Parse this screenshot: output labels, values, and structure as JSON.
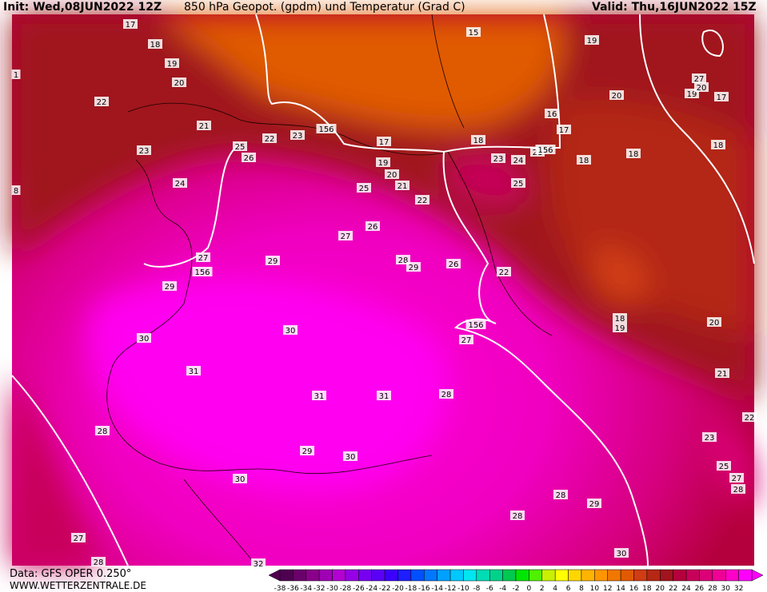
{
  "header": {
    "init": "Init: Wed,08JUN2022 12Z",
    "title": "850 hPa Geopot. (gpdm) und Temperatur (Grad C)",
    "valid": "Valid: Thu,16JUN2022 15Z"
  },
  "footer": {
    "data": "Data: GFS OPER 0.250°",
    "site": "WWW.WETTERZENTRALE.DE"
  },
  "colorbar": {
    "values": [
      -38,
      -36,
      -34,
      -32,
      -30,
      -28,
      -26,
      -24,
      -22,
      -20,
      -18,
      -16,
      -14,
      -12,
      -10,
      -8,
      -6,
      -4,
      -2,
      0,
      2,
      4,
      6,
      8,
      10,
      12,
      14,
      16,
      18,
      20,
      22,
      24,
      26,
      28,
      30,
      32
    ],
    "colors": [
      "#500050",
      "#6a006a",
      "#8a008a",
      "#a000b4",
      "#b400d2",
      "#9600e6",
      "#7800f0",
      "#5a00f5",
      "#3c00ff",
      "#1e1eff",
      "#0050ff",
      "#0078ff",
      "#00a0ff",
      "#00c8ff",
      "#00e6f0",
      "#00dcb4",
      "#00d28c",
      "#00c850",
      "#00e600",
      "#50f000",
      "#c8f000",
      "#ffff00",
      "#ffd700",
      "#ffb400",
      "#ff9600",
      "#f07800",
      "#e05a00",
      "#d03c14",
      "#b42814",
      "#a0141e",
      "#b4003c",
      "#c8005a",
      "#dc0078",
      "#f00096",
      "#ff00c8",
      "#ff00ff"
    ]
  },
  "map": {
    "labels": [
      17,
      18,
      19,
      20,
      22,
      21,
      23,
      24,
      25,
      26,
      22,
      23,
      156,
      17,
      19,
      20,
      21,
      22,
      25,
      18,
      23,
      24,
      21,
      156,
      25,
      16,
      17,
      18,
      18,
      15,
      19,
      20,
      19,
      20,
      17,
      27,
      18,
      27,
      26,
      29,
      28,
      29,
      26,
      22,
      27,
      156,
      29,
      30,
      30,
      156,
      27,
      18,
      19,
      20,
      21,
      22,
      23,
      31,
      31,
      31,
      28,
      28,
      29,
      30,
      30,
      27,
      28,
      32,
      28,
      28,
      29,
      30,
      25,
      27,
      28,
      1,
      8
    ]
  }
}
